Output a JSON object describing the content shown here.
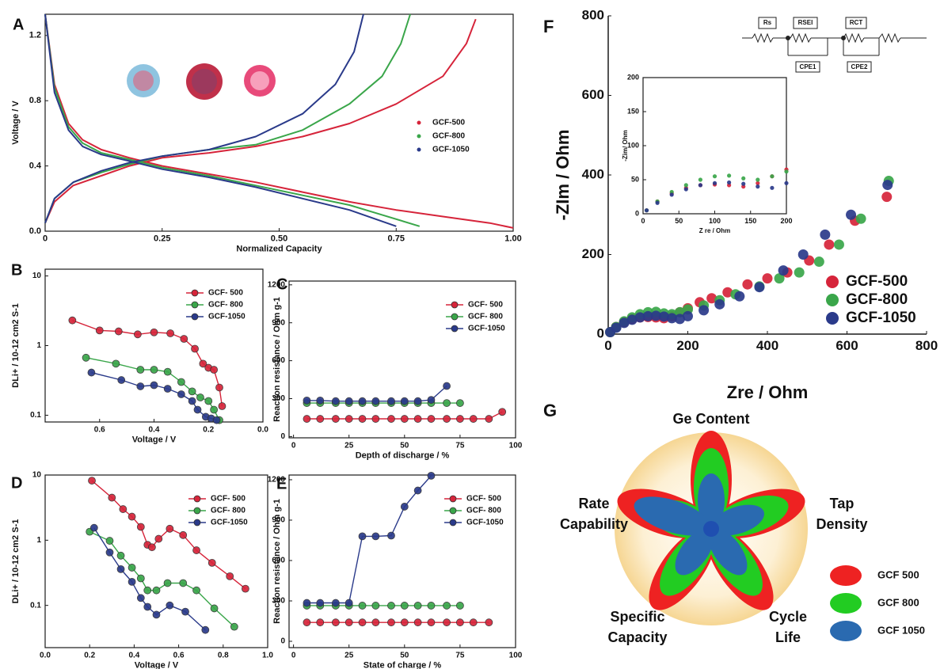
{
  "chart_data": [
    {
      "type": "line",
      "label": "A",
      "x_label": "Normalized Capacity",
      "y_label": "Voltage / V",
      "xlim": [
        0,
        1
      ],
      "ylim": [
        0,
        1.33
      ],
      "xticks": [
        0,
        0.25,
        {
          "value": 0.5,
          "label": "0.50"
        },
        0.75,
        {
          "value": 1,
          "label": "1.00"
        }
      ],
      "yticks": [
        {
          "value": 0,
          "label": "0.0"
        },
        0.4,
        0.8,
        1.2
      ],
      "legend": "center right",
      "series": [
        {
          "name": "GCF-500",
          "color": "#d6243a",
          "x": [
            0,
            0.02,
            0.05,
            0.08,
            0.12,
            0.18,
            0.25,
            0.35,
            0.45,
            0.55,
            0.65,
            0.75,
            0.85,
            0.95,
            1.0,
            null,
            0,
            0.02,
            0.06,
            0.12,
            0.18,
            0.25,
            0.35,
            0.45,
            0.55,
            0.65,
            0.75,
            0.85,
            0.9,
            0.92
          ],
          "values": [
            1.33,
            0.9,
            0.66,
            0.56,
            0.5,
            0.45,
            0.4,
            0.35,
            0.3,
            0.24,
            0.18,
            0.13,
            0.09,
            0.05,
            0.02,
            null,
            0.05,
            0.18,
            0.28,
            0.34,
            0.4,
            0.45,
            0.48,
            0.52,
            0.58,
            0.66,
            0.78,
            0.95,
            1.15,
            1.3
          ]
        },
        {
          "name": "GCF-800",
          "color": "#3aa64a",
          "x": [
            0,
            0.02,
            0.05,
            0.08,
            0.12,
            0.18,
            0.25,
            0.35,
            0.45,
            0.55,
            0.65,
            0.72,
            0.8,
            null,
            0,
            0.02,
            0.06,
            0.12,
            0.18,
            0.25,
            0.35,
            0.45,
            0.55,
            0.65,
            0.72,
            0.76,
            0.78
          ],
          "values": [
            1.33,
            0.88,
            0.64,
            0.54,
            0.48,
            0.44,
            0.39,
            0.34,
            0.28,
            0.22,
            0.16,
            0.1,
            0.03,
            null,
            0.05,
            0.2,
            0.3,
            0.36,
            0.41,
            0.46,
            0.5,
            0.53,
            0.62,
            0.78,
            0.95,
            1.15,
            1.33
          ]
        },
        {
          "name": "GCF-1050",
          "color": "#2a3a8a",
          "x": [
            0,
            0.02,
            0.05,
            0.08,
            0.12,
            0.18,
            0.25,
            0.35,
            0.45,
            0.55,
            0.65,
            0.75,
            null,
            0,
            0.02,
            0.06,
            0.12,
            0.18,
            0.25,
            0.35,
            0.45,
            0.55,
            0.62,
            0.66,
            0.68
          ],
          "values": [
            1.33,
            0.85,
            0.62,
            0.52,
            0.47,
            0.43,
            0.38,
            0.33,
            0.27,
            0.2,
            0.13,
            0.03,
            null,
            0.05,
            0.2,
            0.3,
            0.37,
            0.42,
            0.46,
            0.5,
            0.58,
            0.72,
            0.9,
            1.1,
            1.33
          ]
        }
      ]
    },
    {
      "type": "line",
      "label": "B",
      "x_label": "Voltage / V",
      "y_label": "DLi+ / 10-12 cm2 S-1",
      "xlim": [
        0.8,
        0
      ],
      "ylim": [
        0.08,
        12.5
      ],
      "log_y": true,
      "xticks": [
        0.6,
        0.4,
        0.2,
        {
          "value": 0,
          "label": "0.0"
        }
      ],
      "yticks": [
        0.1,
        1,
        10
      ],
      "legend": "upper right",
      "markers": true,
      "series": [
        {
          "name": "GCF- 500",
          "color": "#d6243a",
          "x": [
            0.7,
            0.6,
            0.53,
            0.46,
            0.4,
            0.34,
            0.29,
            0.25,
            0.22,
            0.2,
            0.18,
            0.16,
            0.15
          ],
          "values": [
            2.3,
            1.65,
            1.6,
            1.45,
            1.55,
            1.5,
            1.25,
            0.9,
            0.55,
            0.48,
            0.45,
            0.25,
            0.135
          ]
        },
        {
          "name": "GCF- 800",
          "color": "#3aa64a",
          "x": [
            0.65,
            0.54,
            0.45,
            0.4,
            0.35,
            0.3,
            0.26,
            0.23,
            0.2,
            0.18,
            0.16
          ],
          "values": [
            0.67,
            0.55,
            0.45,
            0.45,
            0.42,
            0.3,
            0.22,
            0.18,
            0.16,
            0.12,
            0.085
          ]
        },
        {
          "name": "GCF-1050",
          "color": "#2a3a8a",
          "x": [
            0.63,
            0.52,
            0.45,
            0.4,
            0.35,
            0.3,
            0.26,
            0.24,
            0.21,
            0.19,
            0.17
          ],
          "values": [
            0.41,
            0.32,
            0.26,
            0.27,
            0.24,
            0.2,
            0.16,
            0.12,
            0.095,
            0.09,
            0.085
          ]
        }
      ]
    },
    {
      "type": "line",
      "label": "C",
      "x_label": "Depth of discharge / %",
      "y_label": "Reaction resistance / Ohm g-1",
      "xlim": [
        -2,
        100
      ],
      "ylim": [
        -10,
        1230
      ],
      "xticks": [
        0,
        25,
        50,
        75,
        100
      ],
      "yticks": [
        0,
        300,
        600,
        900,
        1200
      ],
      "legend": "upper right",
      "markers": true,
      "series": [
        {
          "name": "GCF- 500",
          "color": "#d6243a",
          "x": [
            6,
            12,
            19,
            25,
            31,
            37,
            44,
            50,
            56,
            62,
            69,
            75,
            81,
            88,
            94
          ],
          "values": [
            140,
            140,
            140,
            140,
            140,
            140,
            140,
            140,
            140,
            140,
            140,
            140,
            140,
            140,
            195
          ]
        },
        {
          "name": "GCF- 800",
          "color": "#3aa64a",
          "x": [
            6,
            12,
            19,
            25,
            31,
            37,
            44,
            50,
            56,
            62,
            69,
            75
          ],
          "values": [
            265,
            265,
            265,
            265,
            265,
            265,
            265,
            265,
            265,
            265,
            265,
            265
          ]
        },
        {
          "name": "GCF-1050",
          "color": "#2a3a8a",
          "x": [
            6,
            12,
            19,
            25,
            31,
            37,
            44,
            50,
            56,
            62,
            69
          ],
          "values": [
            285,
            285,
            280,
            280,
            280,
            280,
            280,
            280,
            280,
            290,
            400
          ]
        }
      ]
    },
    {
      "type": "line",
      "label": "D",
      "x_label": "Voltage / V",
      "y_label": "DLi+ / 10-12 cm2 S-1",
      "xlim": [
        0,
        1
      ],
      "ylim": [
        0.0225,
        10
      ],
      "log_y": true,
      "xticks": [
        {
          "value": 0,
          "label": "0.0"
        },
        0.2,
        0.4,
        0.6,
        0.8,
        {
          "value": 1,
          "label": "1.0"
        }
      ],
      "yticks": [
        0.1,
        1,
        10
      ],
      "legend": "upper right",
      "markers": true,
      "series": [
        {
          "name": "GCF- 500",
          "color": "#d6243a",
          "x": [
            0.21,
            0.3,
            0.35,
            0.39,
            0.43,
            0.46,
            0.48,
            0.51,
            0.56,
            0.62,
            0.68,
            0.75,
            0.83,
            0.9
          ],
          "values": [
            8.2,
            4.5,
            3.0,
            2.3,
            1.6,
            0.85,
            0.78,
            1.05,
            1.5,
            1.2,
            0.7,
            0.45,
            0.28,
            0.18
          ]
        },
        {
          "name": "GCF- 800",
          "color": "#3aa64a",
          "x": [
            0.2,
            0.29,
            0.34,
            0.39,
            0.43,
            0.46,
            0.5,
            0.55,
            0.62,
            0.68,
            0.76,
            0.85
          ],
          "values": [
            1.35,
            0.98,
            0.58,
            0.38,
            0.26,
            0.17,
            0.17,
            0.22,
            0.22,
            0.17,
            0.09,
            0.047
          ]
        },
        {
          "name": "GCF-1050",
          "color": "#2a3a8a",
          "x": [
            0.22,
            0.29,
            0.34,
            0.39,
            0.43,
            0.46,
            0.5,
            0.56,
            0.63,
            0.72
          ],
          "values": [
            1.55,
            0.65,
            0.36,
            0.23,
            0.13,
            0.095,
            0.072,
            0.1,
            0.08,
            0.042
          ]
        }
      ]
    },
    {
      "type": "line",
      "label": "E",
      "x_label": "State of charge / %",
      "y_label": "Reaction resistance / Ohm g-1",
      "xlim": [
        -2,
        100
      ],
      "ylim": [
        -47,
        1235
      ],
      "xticks": [
        0,
        25,
        50,
        75,
        100
      ],
      "yticks": [
        0,
        300,
        600,
        900,
        1200
      ],
      "legend": "upper right",
      "markers": true,
      "series": [
        {
          "name": "GCF- 500",
          "color": "#d6243a",
          "x": [
            6,
            12,
            19,
            25,
            31,
            37,
            44,
            50,
            56,
            62,
            69,
            75,
            81,
            88
          ],
          "values": [
            140,
            140,
            140,
            140,
            140,
            140,
            140,
            140,
            140,
            140,
            140,
            140,
            140,
            140
          ]
        },
        {
          "name": "GCF- 800",
          "color": "#3aa64a",
          "x": [
            6,
            12,
            19,
            25,
            31,
            37,
            44,
            50,
            56,
            62,
            69,
            75
          ],
          "values": [
            265,
            265,
            265,
            265,
            265,
            265,
            265,
            265,
            265,
            265,
            265,
            265
          ]
        },
        {
          "name": "GCF-1050",
          "color": "#2a3a8a",
          "x": [
            6,
            12,
            19,
            25,
            31,
            37,
            44,
            50,
            56,
            62
          ],
          "values": [
            285,
            285,
            285,
            285,
            780,
            780,
            785,
            1000,
            1120,
            1230
          ]
        }
      ]
    },
    {
      "type": "scatter",
      "label": "F",
      "x_label": "Zre / Ohm",
      "y_label": "-ZIm / Ohm",
      "xlim": [
        0,
        800
      ],
      "ylim": [
        0,
        800
      ],
      "xticks": [
        0,
        200,
        400,
        600,
        800
      ],
      "yticks": [
        0,
        200,
        400,
        600,
        800
      ],
      "legend": "lower right",
      "circuit": [
        "Rs",
        "RSEI",
        "RCT",
        "CPE1",
        "CPE2"
      ],
      "inset": {
        "x_label": "Z re / Ohm",
        "y_label": "-Zim/ Ohm",
        "xlim": [
          0,
          200
        ],
        "ylim": [
          0,
          200
        ],
        "xticks": [
          0,
          50,
          100,
          150,
          200
        ],
        "yticks": [
          0,
          50,
          100,
          150,
          200
        ]
      },
      "series": [
        {
          "name": "GCF-500",
          "color": "#d6243a",
          "x": [
            5,
            20,
            40,
            60,
            80,
            100,
            120,
            140,
            160,
            180,
            200,
            230,
            260,
            300,
            350,
            400,
            450,
            505,
            555,
            620,
            700
          ],
          "values": [
            5,
            18,
            30,
            38,
            42,
            43,
            42,
            40,
            45,
            55,
            65,
            80,
            90,
            105,
            125,
            140,
            155,
            185,
            225,
            285,
            345
          ]
        },
        {
          "name": "GCF-800",
          "color": "#3aa64a",
          "x": [
            5,
            20,
            40,
            60,
            80,
            100,
            120,
            140,
            160,
            180,
            200,
            240,
            280,
            320,
            380,
            430,
            480,
            530,
            580,
            635,
            705
          ],
          "values": [
            5,
            18,
            32,
            42,
            50,
            55,
            56,
            52,
            50,
            55,
            62,
            72,
            85,
            100,
            120,
            140,
            155,
            182,
            225,
            290,
            385
          ]
        },
        {
          "name": "GCF-1050",
          "color": "#2a3a8a",
          "x": [
            5,
            20,
            40,
            60,
            80,
            100,
            120,
            140,
            160,
            180,
            200,
            240,
            280,
            330,
            380,
            440,
            490,
            545,
            610,
            702
          ],
          "values": [
            5,
            16,
            28,
            36,
            42,
            45,
            46,
            44,
            40,
            38,
            45,
            60,
            75,
            95,
            118,
            160,
            200,
            250,
            300,
            375
          ]
        }
      ]
    }
  ],
  "diagram": {
    "label": "G",
    "axes": [
      [
        "Ge Content"
      ],
      [
        "Tap",
        "Density"
      ],
      [
        "Cycle",
        "Life"
      ],
      [
        "Specific",
        "Capacity"
      ],
      [
        "Rate",
        "Capability"
      ]
    ],
    "legend": [
      {
        "name": "GCF 500",
        "color": "#ee2222"
      },
      {
        "name": "GCF 800",
        "color": "#22cc22"
      },
      {
        "name": "GCF 1050",
        "color": "#2a6ab0"
      }
    ]
  }
}
